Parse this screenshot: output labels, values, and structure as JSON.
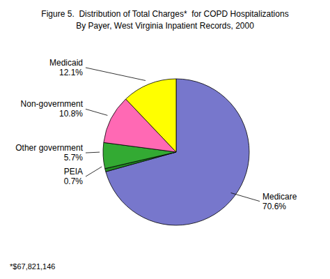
{
  "chart_data": {
    "type": "pie",
    "title": "Figure 5.  Distribution of Total Charges*  for COPD Hospitalizations",
    "subtitle": "By Payer, West Virginia Inpatient Records, 2000",
    "categories": [
      "Medicare",
      "PEIA",
      "Other government",
      "Non-government",
      "Medicaid"
    ],
    "values": [
      70.6,
      0.7,
      5.7,
      10.8,
      12.1
    ],
    "value_labels": [
      "70.6%",
      "0.7%",
      "5.7%",
      "10.8%",
      "12.1%"
    ],
    "colors": [
      "#7777cc",
      "#228b22",
      "#33aa33",
      "#ff69b4",
      "#ffff00"
    ],
    "data_labels": true,
    "annotations": [
      "*$67,821,146"
    ]
  }
}
